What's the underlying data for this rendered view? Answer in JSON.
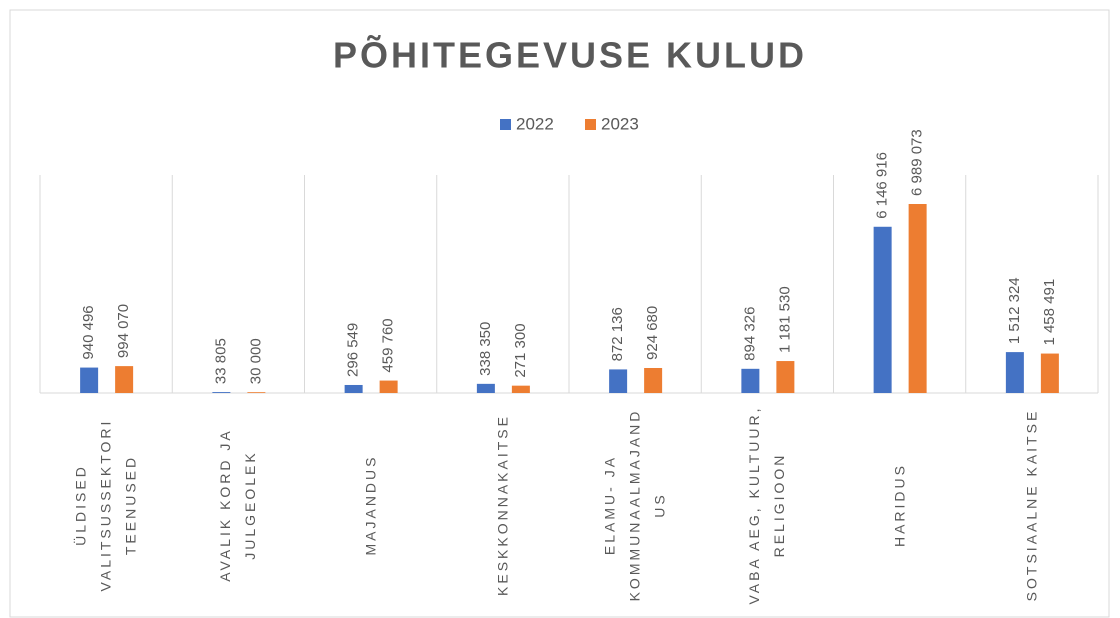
{
  "chart_data": {
    "type": "bar",
    "title": "PÕHITEGEVUSE KULUD",
    "categories": [
      "ÜLDISED VALITSUSSEKTORI TEENUSED",
      "AVALIK KORD JA JULGEOLEK",
      "MAJANDUS",
      "KESKKONNAKAITSE",
      "ELAMU- JA KOMMUNAALMAJANDUS",
      "VABA AEG, KULTUUR, RELIGIOON",
      "HARIDUS",
      "SOTSIAALNE KAITSE"
    ],
    "series": [
      {
        "name": "2022",
        "color": "#4472c4",
        "values": [
          940496,
          33805,
          296549,
          338350,
          872136,
          894326,
          6146916,
          1512324
        ],
        "value_labels": [
          "940 496",
          "33 805",
          "296 549",
          "338 350",
          "872 136",
          "894 326",
          "6 146 916",
          "1 512 324"
        ]
      },
      {
        "name": "2023",
        "color": "#ed7d31",
        "values": [
          994070,
          30000,
          459760,
          271300,
          924680,
          1181530,
          6989073,
          1458491
        ],
        "value_labels": [
          "994 070",
          "30 000",
          "459 760",
          "271 300",
          "924 680",
          "1 181 530",
          "6 989 073",
          "1 458 491"
        ]
      }
    ],
    "legend": "top"
  }
}
